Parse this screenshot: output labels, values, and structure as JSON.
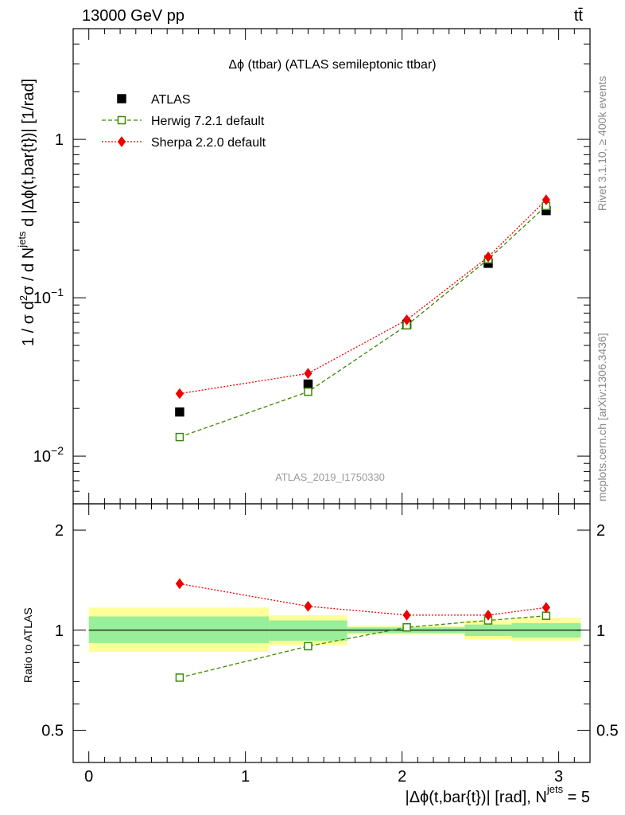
{
  "header": {
    "left": "13000 GeV pp",
    "right": "tt̄"
  },
  "side_text": {
    "top": "Rivet 3.1.10, ≥ 400k events",
    "bottom": "mcplots.cern.ch [arXiv:1306.3436]"
  },
  "chart_data": {
    "type": "scatter",
    "title": "Δϕ (ttbar) (ATLAS semileptonic ttbar)",
    "watermark": "ATLAS_2019_I1750330",
    "xlabel": "|Δϕ(t,bar{t})| [rad], N^jets = 5",
    "xlabel_main": "|Δϕ(t,bar{t})| [rad], N",
    "xlabel_sup": "jets",
    "xlabel_tail": " = 5",
    "ylabel": "1 / σ d²σ / d N^jets d |Δϕ(t,bar{t})| [1/rad]",
    "ylabel_parts": [
      "1 / σ d",
      "2",
      "σ / d N",
      "jets",
      " d |Δϕ(t,bar{t})| [1/rad]"
    ],
    "xlim": [
      -0.1,
      3.2
    ],
    "ylim": [
      0.005,
      5
    ],
    "yscale": "log",
    "x_ticks": [
      "0",
      "1",
      "2",
      "3"
    ],
    "y_ticks": [
      {
        "value": 1,
        "base": "1",
        "exp": ""
      },
      {
        "value": 0.1,
        "base": "10",
        "exp": "−1"
      },
      {
        "value": 0.01,
        "base": "10",
        "exp": "−2"
      }
    ],
    "bins": [
      [
        0,
        1.15
      ],
      [
        1.15,
        1.65
      ],
      [
        1.65,
        2.4
      ],
      [
        2.4,
        2.7
      ],
      [
        2.7,
        3.1416
      ]
    ],
    "x": [
      0.58,
      1.4,
      2.03,
      2.55,
      2.92
    ],
    "legend_position": "top-left",
    "series": [
      {
        "name": "ATLAS",
        "color": "#000000",
        "marker": "square-filled",
        "values": [
          0.019,
          0.0285,
          0.068,
          0.165,
          0.355
        ]
      },
      {
        "name": "Herwig 7.2.1 default",
        "color": "#3a8a00",
        "marker": "square-open",
        "line": "dashed",
        "values": [
          0.0132,
          0.0255,
          0.067,
          0.175,
          0.38
        ]
      },
      {
        "name": "Sherpa 2.2.0 default",
        "color": "#ee0000",
        "marker": "diamond",
        "line": "dotted",
        "values": [
          0.0248,
          0.0333,
          0.0725,
          0.181,
          0.415
        ]
      }
    ],
    "ratio": {
      "ylabel": "Ratio to ATLAS",
      "ylim": [
        0.4,
        2.4
      ],
      "y_ticks": [
        "0.5",
        "1",
        "2"
      ],
      "herwig": [
        0.72,
        0.895,
        1.02,
        1.07,
        1.105
      ],
      "sherpa": [
        1.38,
        1.18,
        1.11,
        1.11,
        1.17
      ],
      "band_inner": [
        [
          0.915,
          1.1
        ],
        [
          0.93,
          1.07
        ],
        [
          0.98,
          1.02
        ],
        [
          0.96,
          1.04
        ],
        [
          0.95,
          1.05
        ]
      ],
      "band_outer": [
        [
          0.86,
          1.17
        ],
        [
          0.9,
          1.11
        ],
        [
          0.97,
          1.03
        ],
        [
          0.94,
          1.07
        ],
        [
          0.93,
          1.09
        ]
      ]
    }
  }
}
